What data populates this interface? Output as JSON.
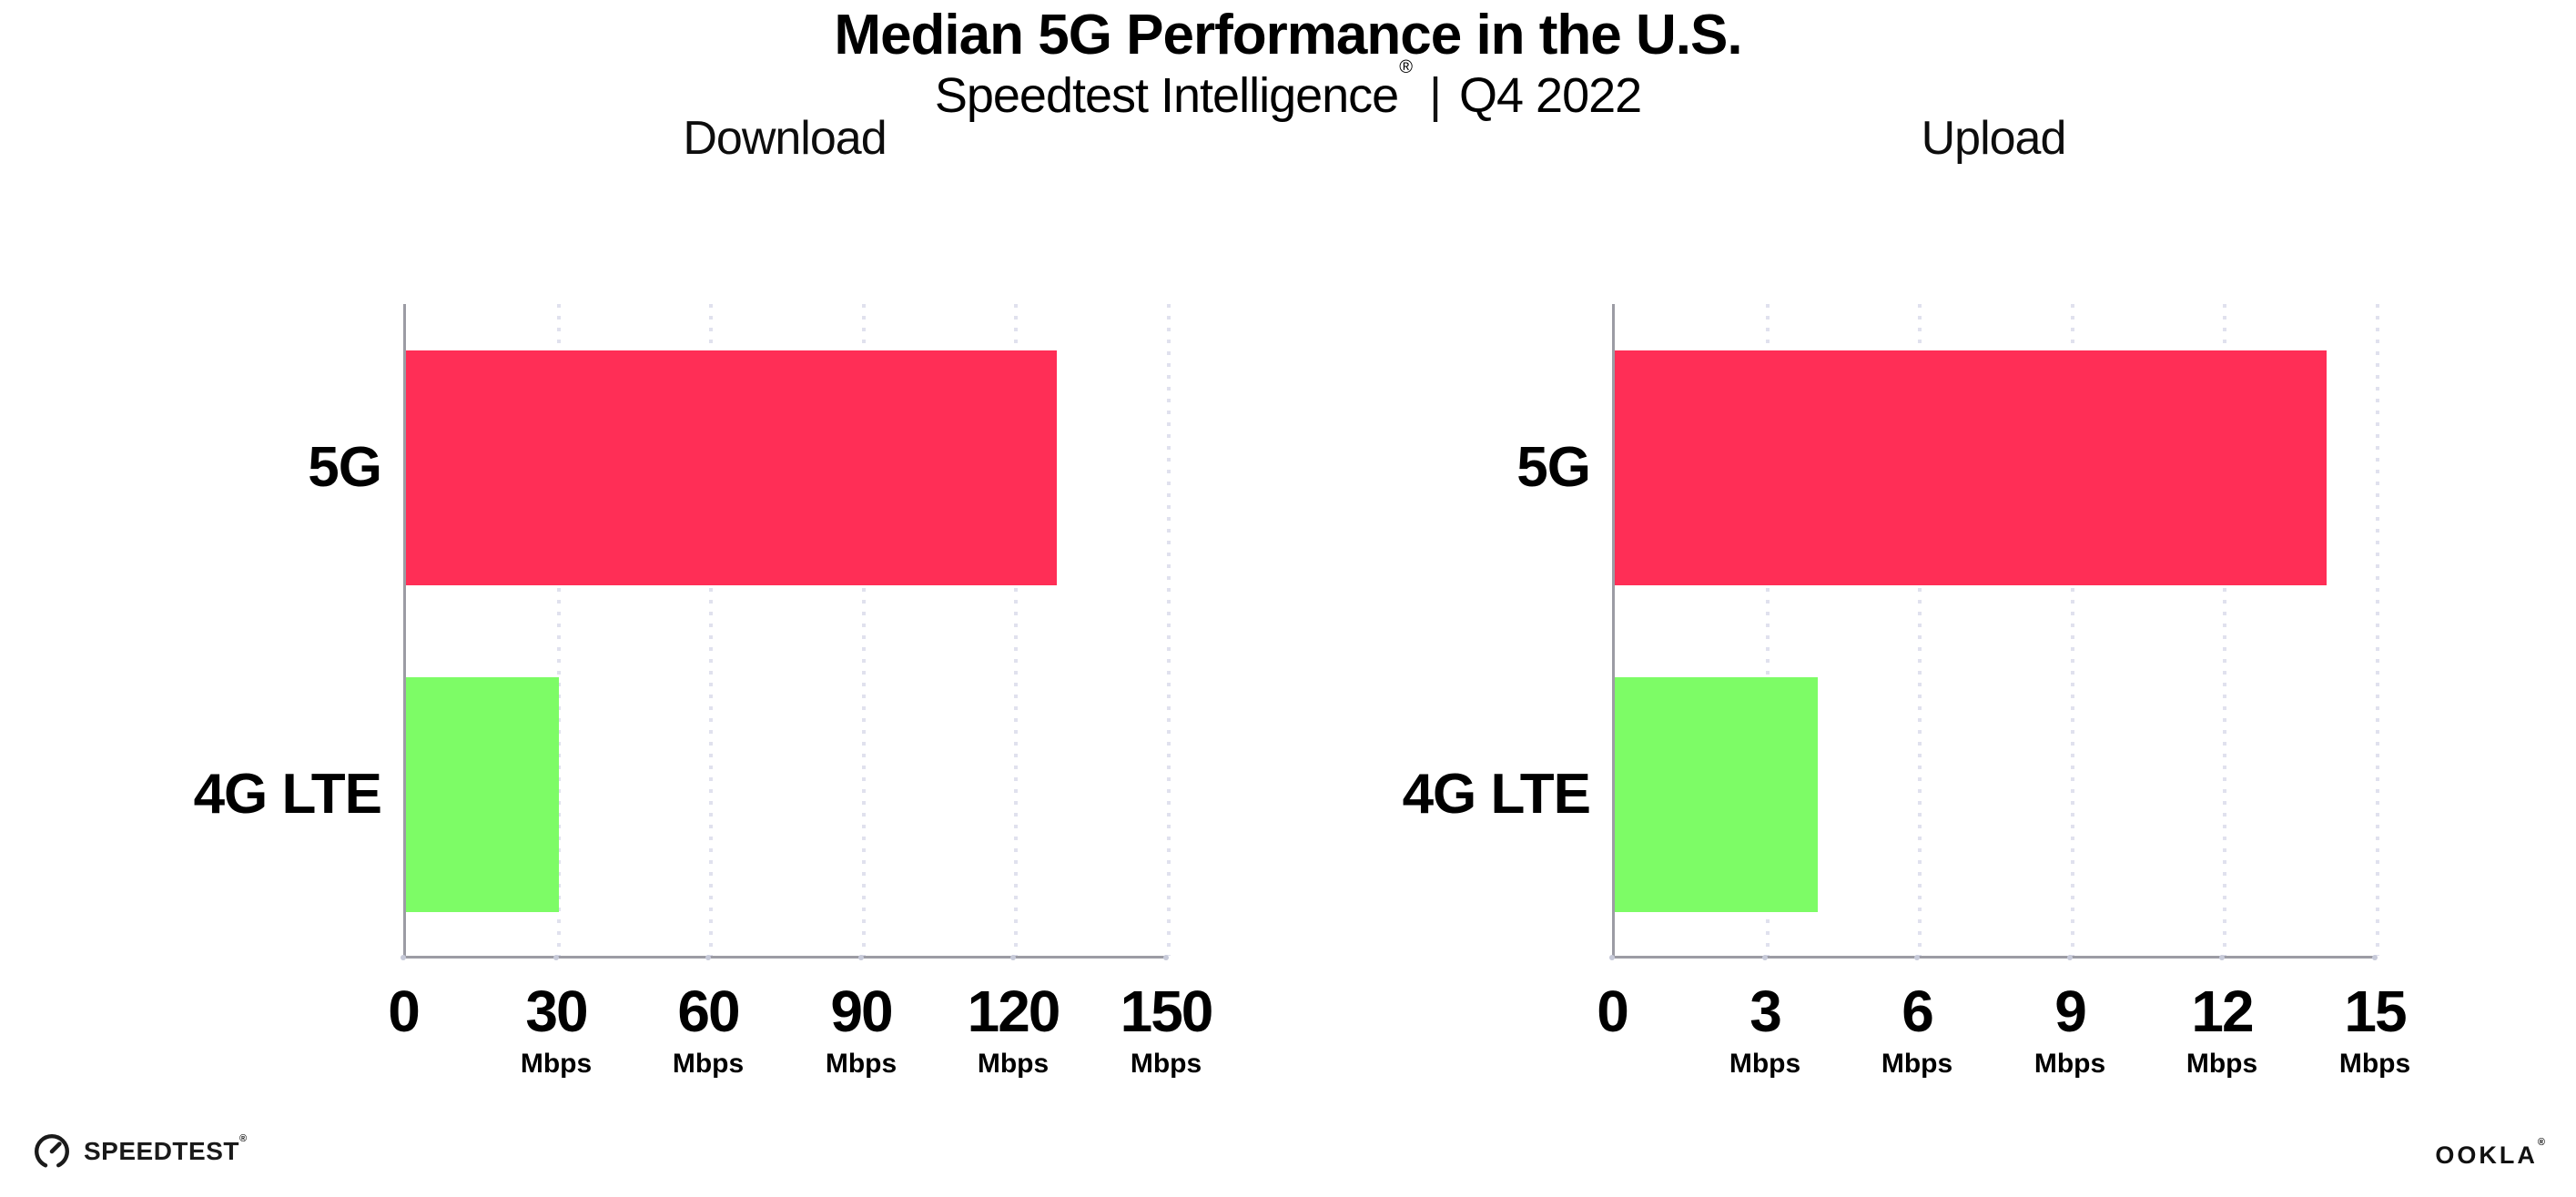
{
  "header": {
    "title": "Median 5G Performance in the U.S.",
    "subtitle": {
      "brand": "Speedtest Intelligence",
      "registered_mark": "®",
      "separator": "|",
      "period": "Q4 2022"
    }
  },
  "chart_data": [
    {
      "type": "bar",
      "orientation": "horizontal",
      "title": "Download",
      "categories": [
        "5G",
        "4G LTE"
      ],
      "values": [
        128,
        30
      ],
      "unit": "Mbps",
      "xlabel": "",
      "ylabel": "",
      "xlim": [
        0,
        150
      ],
      "xticks": [
        0,
        30,
        60,
        90,
        120,
        150
      ],
      "bar_colors": [
        "#ff2e56",
        "#7dfc66"
      ],
      "grid": "vertical-dotted",
      "legend": "none"
    },
    {
      "type": "bar",
      "orientation": "horizontal",
      "title": "Upload",
      "categories": [
        "5G",
        "4G LTE"
      ],
      "values": [
        14,
        4
      ],
      "unit": "Mbps",
      "xlabel": "",
      "ylabel": "",
      "xlim": [
        0,
        15
      ],
      "xticks": [
        0,
        3,
        6,
        9,
        12,
        15
      ],
      "bar_colors": [
        "#ff2e56",
        "#7dfc66"
      ],
      "grid": "vertical-dotted",
      "legend": "none"
    }
  ],
  "footer": {
    "speedtest": {
      "label": "SPEEDTEST",
      "registered_mark": "®",
      "icon": "gauge-icon"
    },
    "ookla": {
      "label": "OOKLA",
      "registered_mark": "®"
    }
  },
  "colors": {
    "bar_5g": "#ff2e56",
    "bar_4g_lte": "#7dfc66",
    "axis": "#9c9ca4",
    "gridline": "#e0e1ee",
    "tick_dot": "#c7cad9",
    "text": "#000000",
    "background": "#ffffff"
  }
}
